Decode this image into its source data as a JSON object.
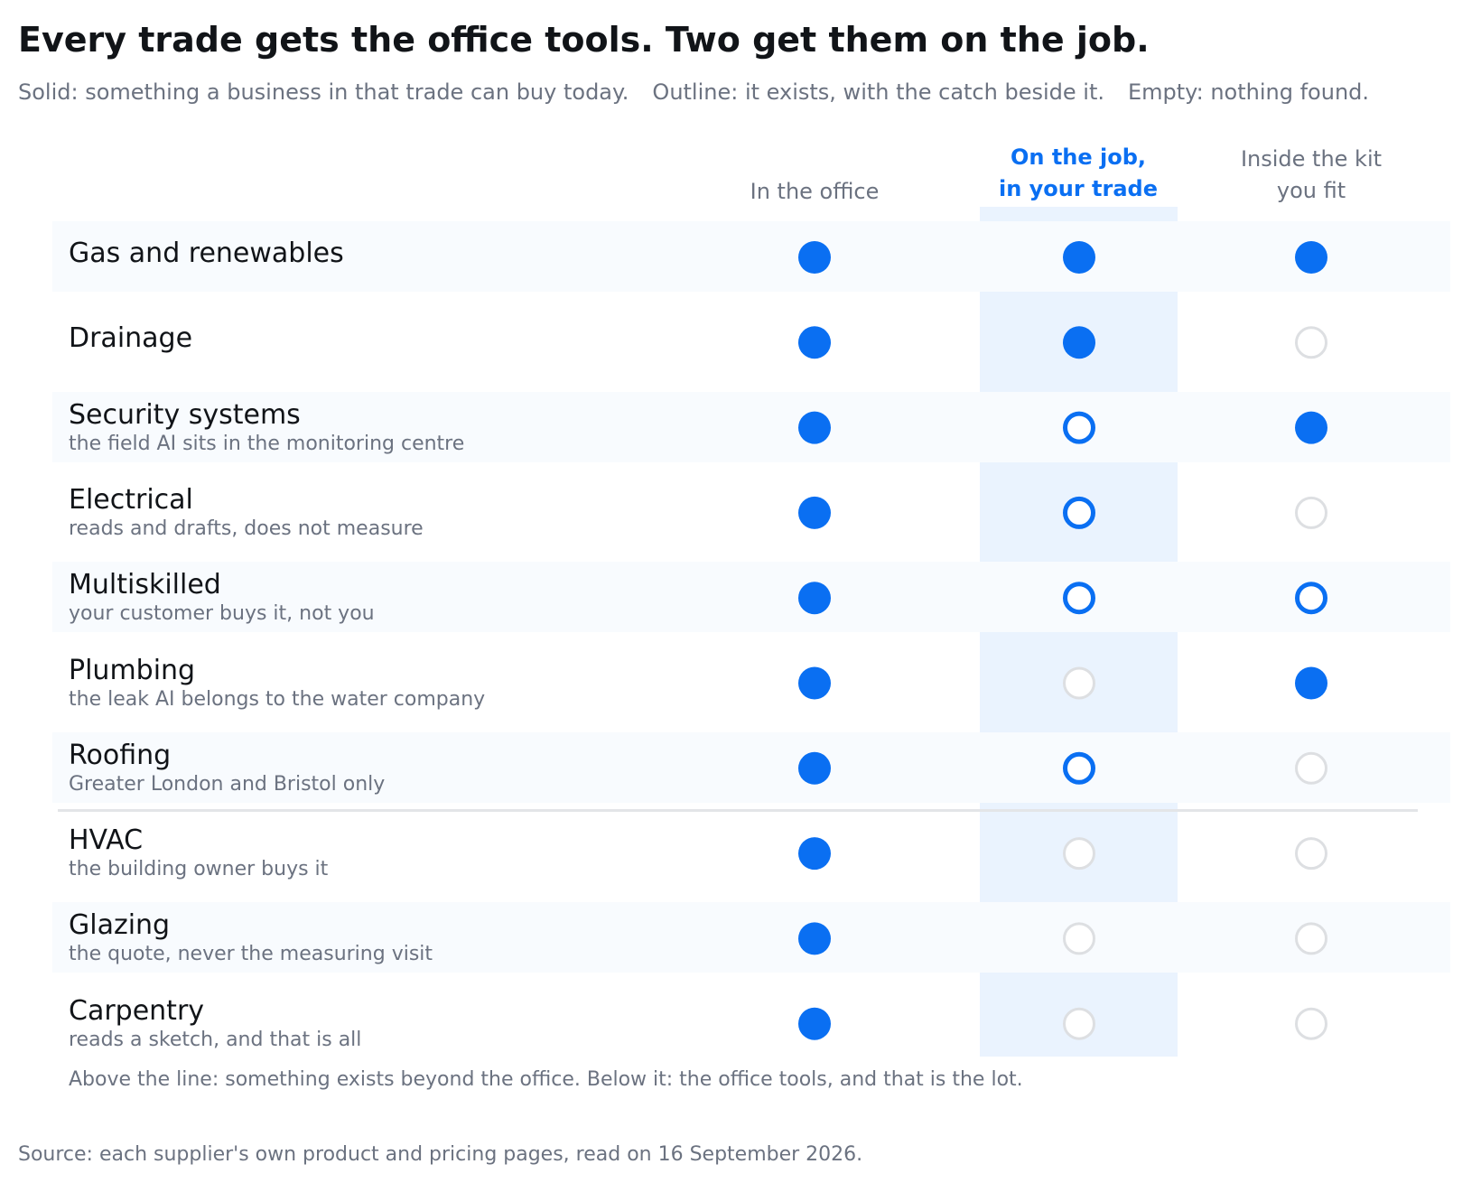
{
  "title": "Every trade gets the office tools. Two get them on the job.",
  "legend": [
    "Solid: something a business in that trade can buy today.",
    "Outline: it exists, with the catch beside it.",
    "Empty: nothing found."
  ],
  "columns": [
    {
      "line1": "",
      "line2": "In the office"
    },
    {
      "line1": "On the job,",
      "line2": "in your trade"
    },
    {
      "line1": "Inside the kit",
      "line2": "you fit"
    }
  ],
  "colors": {
    "accent": "#0a6ff2",
    "empty": "#dddfe2",
    "highlight_band": "#eaf3fe"
  },
  "chart_data": {
    "type": "table",
    "title": "Every trade gets the office tools. Two get them on the job.",
    "value_scale": {
      "solid": "something a business in that trade can buy today",
      "outline": "it exists, with the catch beside it",
      "empty": "nothing found"
    },
    "columns": [
      "In the office",
      "On the job, in your trade",
      "Inside the kit you fit"
    ],
    "highlighted_column": "On the job, in your trade",
    "rows": [
      {
        "trade": "Gas and renewables",
        "note": "",
        "values": [
          "solid",
          "solid",
          "solid"
        ]
      },
      {
        "trade": "Drainage",
        "note": "",
        "values": [
          "solid",
          "solid",
          "empty"
        ]
      },
      {
        "trade": "Security systems",
        "note": "the field AI sits in the monitoring centre",
        "values": [
          "solid",
          "outline",
          "solid"
        ]
      },
      {
        "trade": "Electrical",
        "note": "reads and drafts, does not measure",
        "values": [
          "solid",
          "outline",
          "empty"
        ]
      },
      {
        "trade": "Multiskilled",
        "note": "your customer buys it, not you",
        "values": [
          "solid",
          "outline",
          "outline"
        ]
      },
      {
        "trade": "Plumbing",
        "note": "the leak AI belongs to the water company",
        "values": [
          "solid",
          "empty",
          "solid"
        ]
      },
      {
        "trade": "Roofing",
        "note": "Greater London and Bristol only",
        "values": [
          "solid",
          "outline",
          "empty"
        ]
      },
      {
        "trade": "HVAC",
        "note": "the building owner buys it",
        "values": [
          "solid",
          "empty",
          "empty"
        ]
      },
      {
        "trade": "Glazing",
        "note": "the quote, never the measuring visit",
        "values": [
          "solid",
          "empty",
          "empty"
        ]
      },
      {
        "trade": "Carpentry",
        "note": "reads a sketch, and that is all",
        "values": [
          "solid",
          "empty",
          "empty"
        ]
      }
    ],
    "rows_above_divider": 7
  },
  "footnote": "Above the line: something exists beyond the office.  Below it: the office tools, and that is the lot.",
  "source": "Source: each supplier's own product and pricing pages, read on 16 September 2026."
}
